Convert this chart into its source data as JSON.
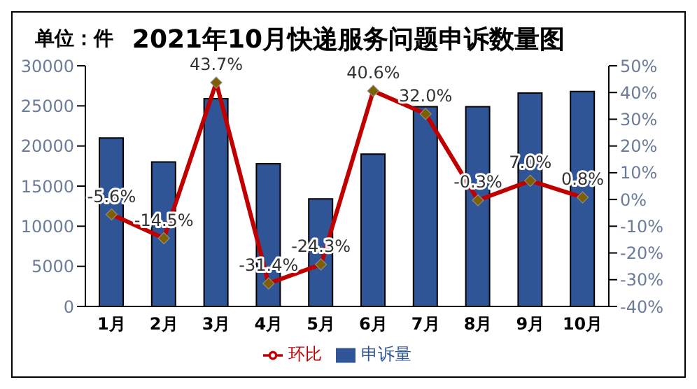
{
  "chart_data": {
    "type": "bar",
    "title": "2021年10月快递服务问题申诉数量图",
    "annotations": [
      "单位：件"
    ],
    "categories": [
      "1月",
      "2月",
      "3月",
      "4月",
      "5月",
      "6月",
      "7月",
      "8月",
      "9月",
      "10月"
    ],
    "series": [
      {
        "name": "申诉量",
        "color": "#2f5597",
        "values": [
          21000,
          18000,
          25900,
          17800,
          13400,
          19000,
          24900,
          24900,
          26600,
          26800
        ]
      },
      {
        "name": "环比",
        "type": "line",
        "axis": "y2",
        "color": "#c00000",
        "marker": "diamond",
        "values": [
          -5.6,
          -14.5,
          43.7,
          -31.4,
          -24.3,
          40.6,
          32.0,
          -0.3,
          7.0,
          0.8
        ],
        "value_labels": [
          "-5.6%",
          "-14.5%",
          "43.7%",
          "-31.4%",
          "-24.3%",
          "40.6%",
          "32.0%",
          "-0.3%",
          "7.0%",
          "0.8%"
        ]
      }
    ],
    "ylim": [
      0,
      30000
    ],
    "yticks": [
      0,
      5000,
      10000,
      15000,
      20000,
      25000,
      30000
    ],
    "y2lim": [
      -40,
      50
    ],
    "y2ticks": [
      {
        "value": -40,
        "label": "-40%"
      },
      {
        "value": -30,
        "label": "-30%"
      },
      {
        "value": -20,
        "label": "-20%"
      },
      {
        "value": -10,
        "label": "-10%"
      },
      {
        "value": 0,
        "label": "0%"
      },
      {
        "value": 10,
        "label": "10%"
      },
      {
        "value": 20,
        "label": "20%"
      },
      {
        "value": 30,
        "label": "30%"
      },
      {
        "value": 40,
        "label": "40%"
      },
      {
        "value": 50,
        "label": "50%"
      }
    ],
    "grid": false,
    "legend": "bottom"
  }
}
